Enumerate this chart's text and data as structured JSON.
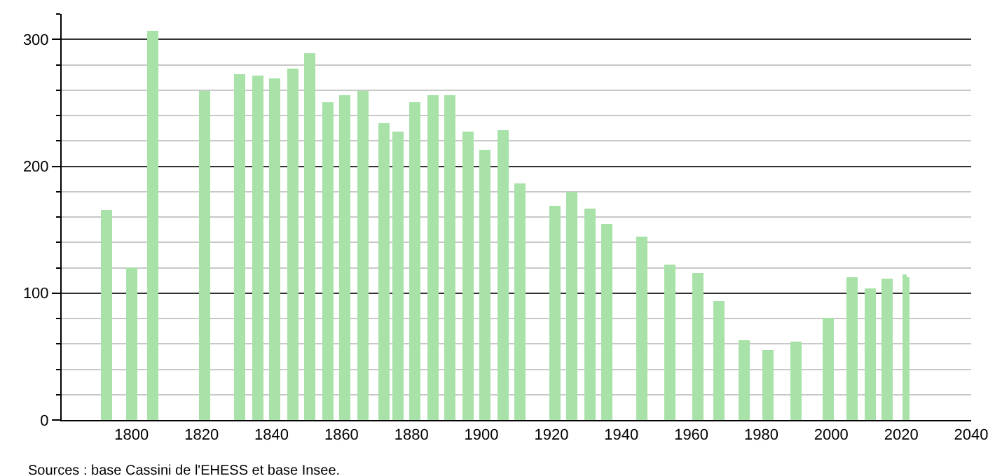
{
  "chart_data": {
    "type": "bar",
    "x": [
      1793,
      1800,
      1806,
      1821,
      1831,
      1836,
      1841,
      1846,
      1851,
      1856,
      1861,
      1866,
      1872,
      1876,
      1881,
      1886,
      1891,
      1896,
      1901,
      1906,
      1911,
      1921,
      1926,
      1931,
      1936,
      1946,
      1954,
      1962,
      1968,
      1975,
      1982,
      1990,
      1999,
      2006,
      2011,
      2016,
      2021,
      2022
    ],
    "values": [
      165,
      120,
      307,
      259,
      273,
      271,
      269,
      277,
      289,
      251,
      256,
      259,
      234,
      227,
      250,
      256,
      256,
      227,
      213,
      228,
      186,
      169,
      180,
      167,
      155,
      145,
      123,
      116,
      94,
      63,
      55,
      62,
      81,
      113,
      104,
      112,
      115,
      113
    ],
    "color": "#a8e2a8",
    "xlim": [
      1780,
      2040
    ],
    "xticks": [
      1800,
      1820,
      1840,
      1860,
      1880,
      1900,
      1920,
      1940,
      1960,
      1980,
      2000,
      2020,
      2040
    ],
    "ylim": [
      0,
      320
    ],
    "yticks": [
      0,
      100,
      200,
      300
    ],
    "grid": "y",
    "annotations": [
      "Sources : base Cassini de l'EHESS et base Insee."
    ]
  }
}
